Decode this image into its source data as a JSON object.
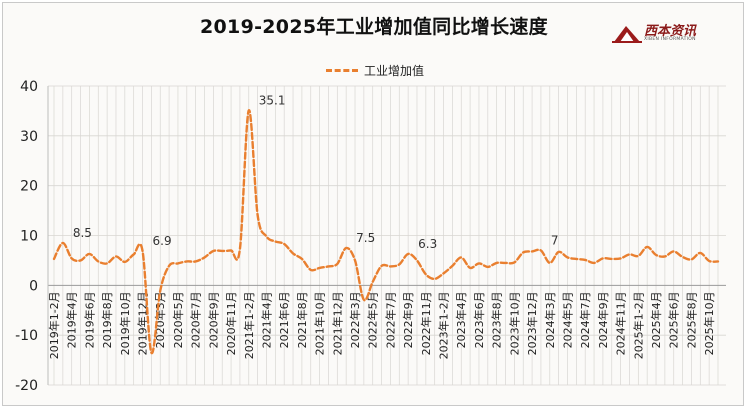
{
  "title": "2019-2025年工业增加值同比增长速度",
  "logo": {
    "name": "西本资讯",
    "subtitle": "XIBEN INFORMATION"
  },
  "chart_data": {
    "type": "line",
    "title": "2019-2025年工业增加值同比增长速度",
    "xlabel": "",
    "ylabel": "",
    "ylim": [
      -20,
      40
    ],
    "yticks": [
      -20,
      -10,
      0,
      10,
      20,
      30,
      40
    ],
    "grid": true,
    "legend": "top-center",
    "colors": {
      "series": "#e97f2f",
      "grid": "#d8d6d2"
    },
    "x": [
      "2019年1-2月",
      "2019年3月",
      "2019年4月",
      "2019年5月",
      "2019年6月",
      "2019年7月",
      "2019年8月",
      "2019年9月",
      "2019年10月",
      "2019年11月",
      "2019年12月",
      "2020年1-2月",
      "2020年3月",
      "2020年4月",
      "2020年5月",
      "2020年6月",
      "2020年7月",
      "2020年8月",
      "2020年9月",
      "2020年10月",
      "2020年11月",
      "2020年12月",
      "2021年1-2月",
      "2021年3月",
      "2021年4月",
      "2021年5月",
      "2021年6月",
      "2021年7月",
      "2021年8月",
      "2021年9月",
      "2021年10月",
      "2021年11月",
      "2021年12月",
      "2022年1-2月",
      "2022年3月",
      "2022年4月",
      "2022年5月",
      "2022年6月",
      "2022年7月",
      "2022年8月",
      "2022年9月",
      "2022年10月",
      "2022年11月",
      "2022年12月",
      "2023年1-2月",
      "2023年3月",
      "2023年4月",
      "2023年5月",
      "2023年6月",
      "2023年7月",
      "2023年8月",
      "2023年9月",
      "2023年10月",
      "2023年11月",
      "2023年12月",
      "2024年1-2月",
      "2024年3月",
      "2024年4月",
      "2024年5月",
      "2024年6月",
      "2024年7月",
      "2024年8月",
      "2024年9月",
      "2024年10月",
      "2024年11月",
      "2024年12月",
      "2025年1-2月",
      "2025年3月",
      "2025年4月",
      "2025年5月",
      "2025年6月",
      "2025年7月",
      "2025年8月",
      "2025年9月",
      "2025年10月",
      "2025年11月"
    ],
    "xtick_labels": [
      "2019年1-2月",
      "2019年4月",
      "2019年6月",
      "2019年8月",
      "2019年10月",
      "2019年12月",
      "2020年3月",
      "2020年5月",
      "2020年7月",
      "2020年9月",
      "2020年11月",
      "2021年1-2月",
      "2021年4月",
      "2021年6月",
      "2021年8月",
      "2021年10月",
      "2021年12月",
      "2022年3月",
      "2022年5月",
      "2022年7月",
      "2022年9月",
      "2022年11月",
      "2023年1-2月",
      "2023年4月",
      "2023年6月",
      "2023年8月",
      "2023年10月",
      "2023年12月",
      "2024年3月",
      "2024年5月",
      "2024年7月",
      "2024年9月",
      "2024年11月",
      "2025年1-2月",
      "2025年4月",
      "2025年6月",
      "2025年8月",
      "2025年10月"
    ],
    "series": [
      {
        "name": "工业增加值",
        "values": [
          5.3,
          8.5,
          5.4,
          5.0,
          6.3,
          4.8,
          4.4,
          5.8,
          4.7,
          6.2,
          6.9,
          -13.5,
          -1.1,
          3.9,
          4.4,
          4.8,
          4.8,
          5.6,
          6.9,
          6.9,
          7.0,
          7.3,
          35.1,
          14.1,
          9.8,
          8.8,
          8.3,
          6.4,
          5.3,
          3.1,
          3.5,
          3.8,
          4.3,
          7.5,
          5.0,
          -2.9,
          0.7,
          3.9,
          3.8,
          4.2,
          6.3,
          5.0,
          2.2,
          1.3,
          2.4,
          3.9,
          5.6,
          3.5,
          4.4,
          3.7,
          4.5,
          4.5,
          4.6,
          6.6,
          6.8,
          7.0,
          4.5,
          6.7,
          5.6,
          5.3,
          5.1,
          4.5,
          5.4,
          5.3,
          5.4,
          6.2,
          5.9,
          7.7,
          6.1,
          5.8,
          6.8,
          5.7,
          5.2,
          6.5,
          4.9,
          4.8
        ]
      }
    ],
    "annotations": [
      {
        "x": "2019年3月",
        "value": 8.5,
        "text": "8.5"
      },
      {
        "x": "2019年12月",
        "value": 6.9,
        "text": "6.9"
      },
      {
        "x": "2021年1-2月",
        "value": 35.1,
        "text": "35.1"
      },
      {
        "x": "2022年1-2月",
        "value": 7.5,
        "text": "7.5"
      },
      {
        "x": "2022年9月",
        "value": 6.3,
        "text": "6.3"
      },
      {
        "x": "2024年1-2月",
        "value": 7,
        "text": "7"
      }
    ]
  }
}
